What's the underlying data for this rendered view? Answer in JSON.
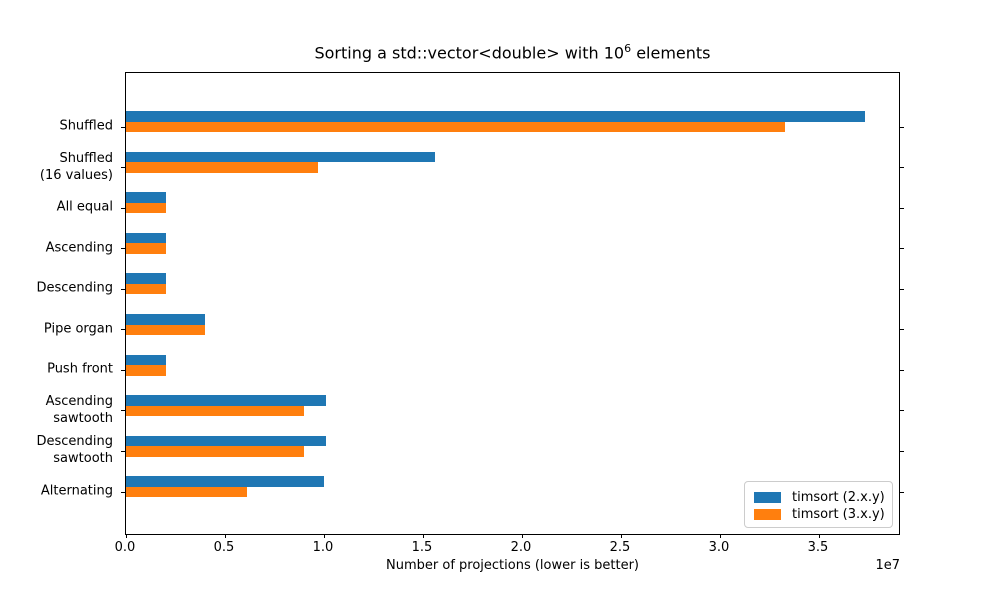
{
  "title_display": {
    "prefix": "Sorting a std::vector<double> with 10",
    "sup": "6",
    "suffix": " elements"
  },
  "chart_data": {
    "type": "bar",
    "orientation": "horizontal",
    "title": "Sorting a std::vector<double> with 10^6 elements",
    "categories": [
      "Shuffled",
      "Shuffled\n(16 values)",
      "All equal",
      "Ascending",
      "Descending",
      "Pipe organ",
      "Push front",
      "Ascending\nsawtooth",
      "Descending\nsawtooth",
      "Alternating"
    ],
    "series": [
      {
        "name": "timsort (2.x.y)",
        "color": "#1f77b4",
        "values": [
          37300000,
          15600000,
          2000000,
          2000000,
          2000000,
          4000000,
          2000000,
          10100000,
          10100000,
          10000000
        ]
      },
      {
        "name": "timsort (3.x.y)",
        "color": "#ff7f0e",
        "values": [
          33300000,
          9700000,
          2000000,
          2000000,
          2000000,
          4000000,
          2000000,
          9000000,
          9000000,
          6100000
        ]
      }
    ],
    "xlabel": "Number of projections (lower is better)",
    "x_ticks": [
      "0.0",
      "0.5",
      "1.0",
      "1.5",
      "2.0",
      "2.5",
      "3.0",
      "3.5"
    ],
    "x_tick_step": 5000000,
    "x_offset_label": "1e7",
    "xlim": [
      0,
      39100000
    ],
    "grid": false,
    "legend_position": "lower right"
  }
}
